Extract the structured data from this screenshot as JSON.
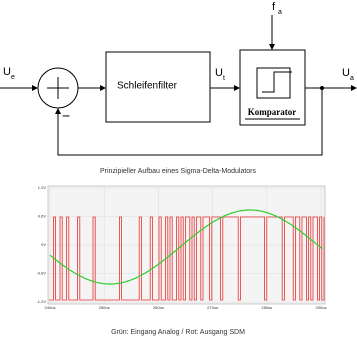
{
  "diagram": {
    "input": {
      "label": "U",
      "sub": "e"
    },
    "clock": {
      "label": "f",
      "sub": "a"
    },
    "filter_output": {
      "label": "U",
      "sub": "t"
    },
    "output": {
      "label": "U",
      "sub": "a"
    },
    "filter": "Schleifenfilter",
    "comparator": "Komparator",
    "feedback_sign": "−",
    "caption": "Prinzipieller Aufbau eines Sigma-Delta-Modulators"
  },
  "plot": {
    "yticks": [
      "1.2V",
      "0.6V",
      "0V",
      "-0.6V",
      "-1.2V"
    ],
    "xticks": [
      "240us",
      "250us",
      "260us",
      "270us",
      "280us",
      "290us"
    ],
    "caption": "Grün: Eingang Analog / Rot: Ausgang SDM"
  }
}
